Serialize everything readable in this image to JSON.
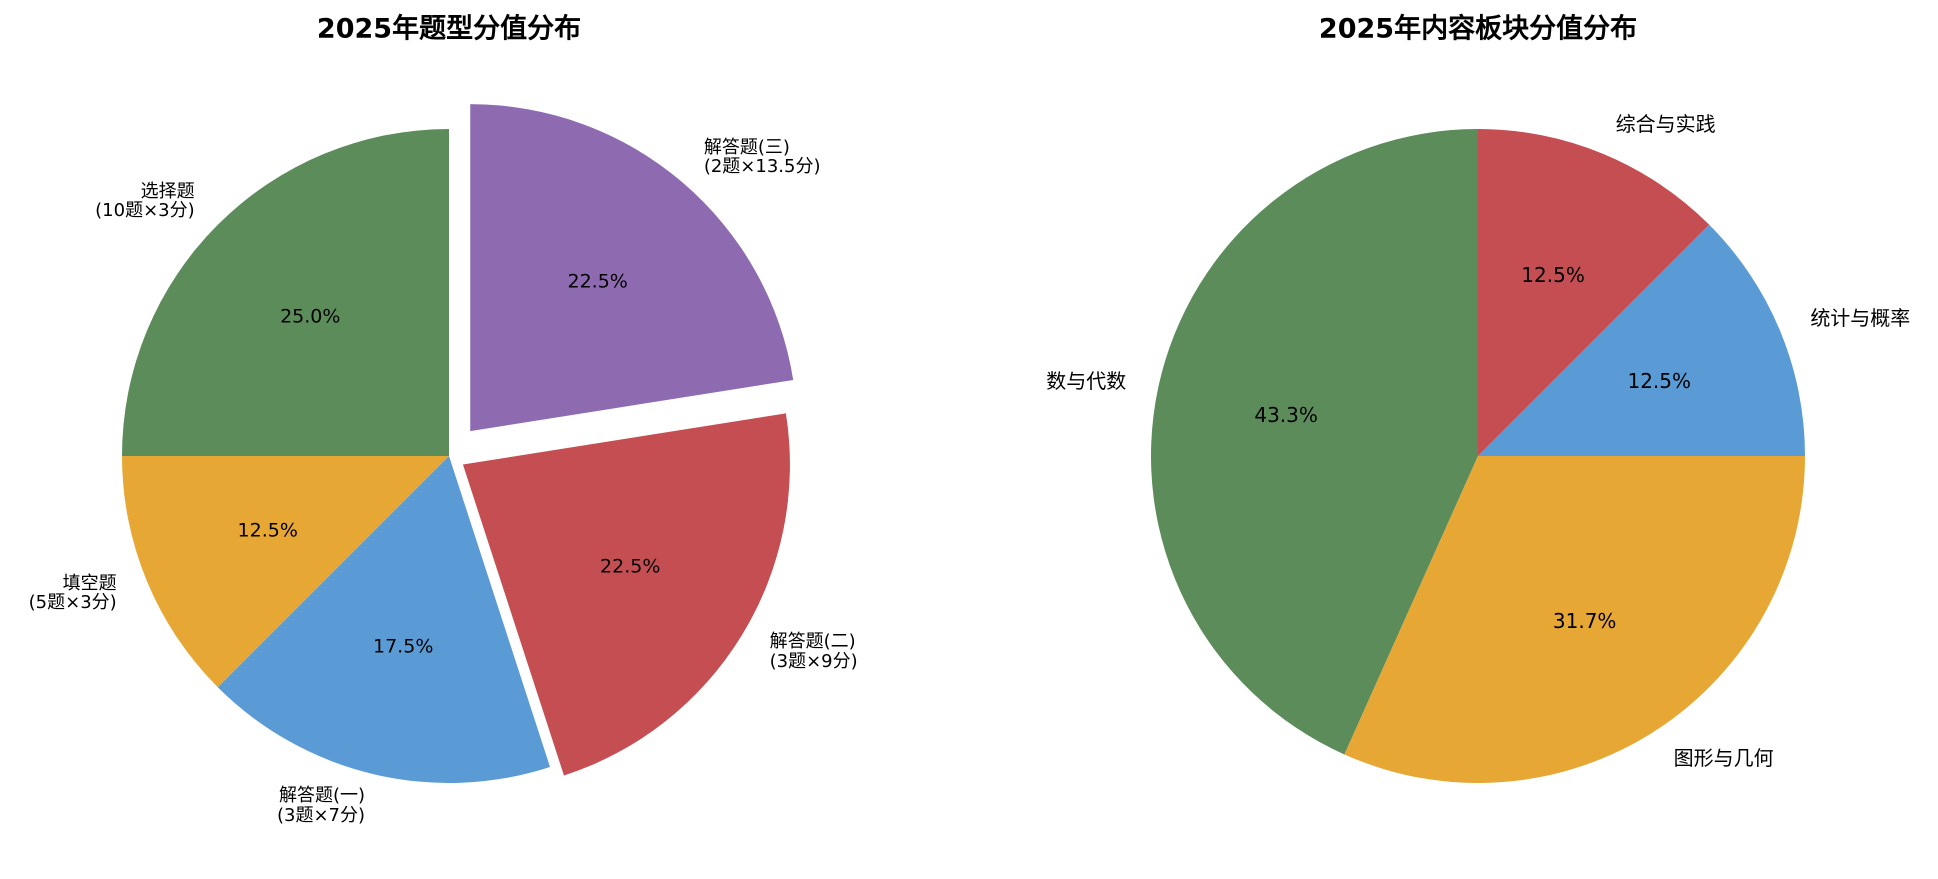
{
  "chart_data": [
    {
      "type": "pie",
      "title": "2025年题型分值分布",
      "categories": [
        "选择题\n(10题×3分)",
        "填空题\n(5题×3分)",
        "解答题(一)\n(3题×7分)",
        "解答题(二)\n(3题×9分)",
        "解答题(三)\n(2题×13.5分)"
      ],
      "values": [
        25,
        12.5,
        17.5,
        22.5,
        22.5
      ],
      "value_labels": [
        "25.0%",
        "12.5%",
        "17.5%",
        "22.5%",
        "22.5%"
      ],
      "colors": [
        "#5b8c5a",
        "#e6a735",
        "#5b9bd5",
        "#c44e52",
        "#8e6bb0"
      ],
      "explode": [
        0,
        0,
        0,
        0.05,
        0.1
      ],
      "startangle": 90
    },
    {
      "type": "pie",
      "title": "2025年内容板块分值分布",
      "categories": [
        "数与代数",
        "图形与几何",
        "统计与概率",
        "综合与实践"
      ],
      "values": [
        43.3,
        31.7,
        12.5,
        12.5
      ],
      "value_labels": [
        "43.3%",
        "31.7%",
        "12.5%",
        "12.5%"
      ],
      "colors": [
        "#5b8c5a",
        "#e6a735",
        "#5b9bd5",
        "#c44e52"
      ],
      "explode": [
        0,
        0,
        0,
        0
      ],
      "startangle": 90
    }
  ]
}
